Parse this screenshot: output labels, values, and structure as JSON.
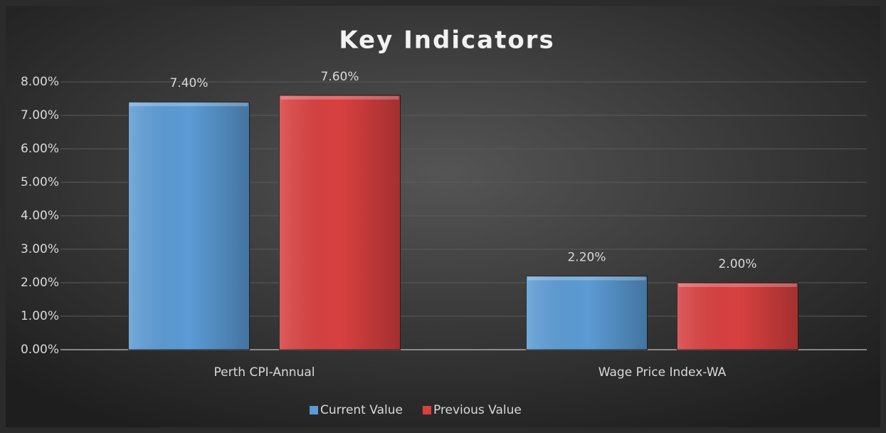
{
  "chart_data": {
    "type": "bar",
    "title": "Key Indicators",
    "categories": [
      "Perth CPI-Annual",
      "Wage Price Index-WA"
    ],
    "series": [
      {
        "name": "Current Value",
        "color": "#5b9bd5",
        "values": [
          7.4,
          2.2
        ],
        "value_labels": [
          "7.40%",
          "2.20%"
        ]
      },
      {
        "name": "Previous Value",
        "color": "#d94040",
        "values": [
          7.6,
          2.0
        ],
        "value_labels": [
          "7.60%",
          "2.00%"
        ]
      }
    ],
    "ylim": [
      0,
      8
    ],
    "yticks": [
      {
        "value": 0,
        "label": "0.00%"
      },
      {
        "value": 1,
        "label": "1.00%"
      },
      {
        "value": 2,
        "label": "2.00%"
      },
      {
        "value": 3,
        "label": "3.00%"
      },
      {
        "value": 4,
        "label": "4.00%"
      },
      {
        "value": 5,
        "label": "5.00%"
      },
      {
        "value": 6,
        "label": "6.00%"
      },
      {
        "value": 7,
        "label": "7.00%"
      },
      {
        "value": 8,
        "label": "8.00%"
      }
    ],
    "grid": true,
    "legend": "bottom"
  }
}
